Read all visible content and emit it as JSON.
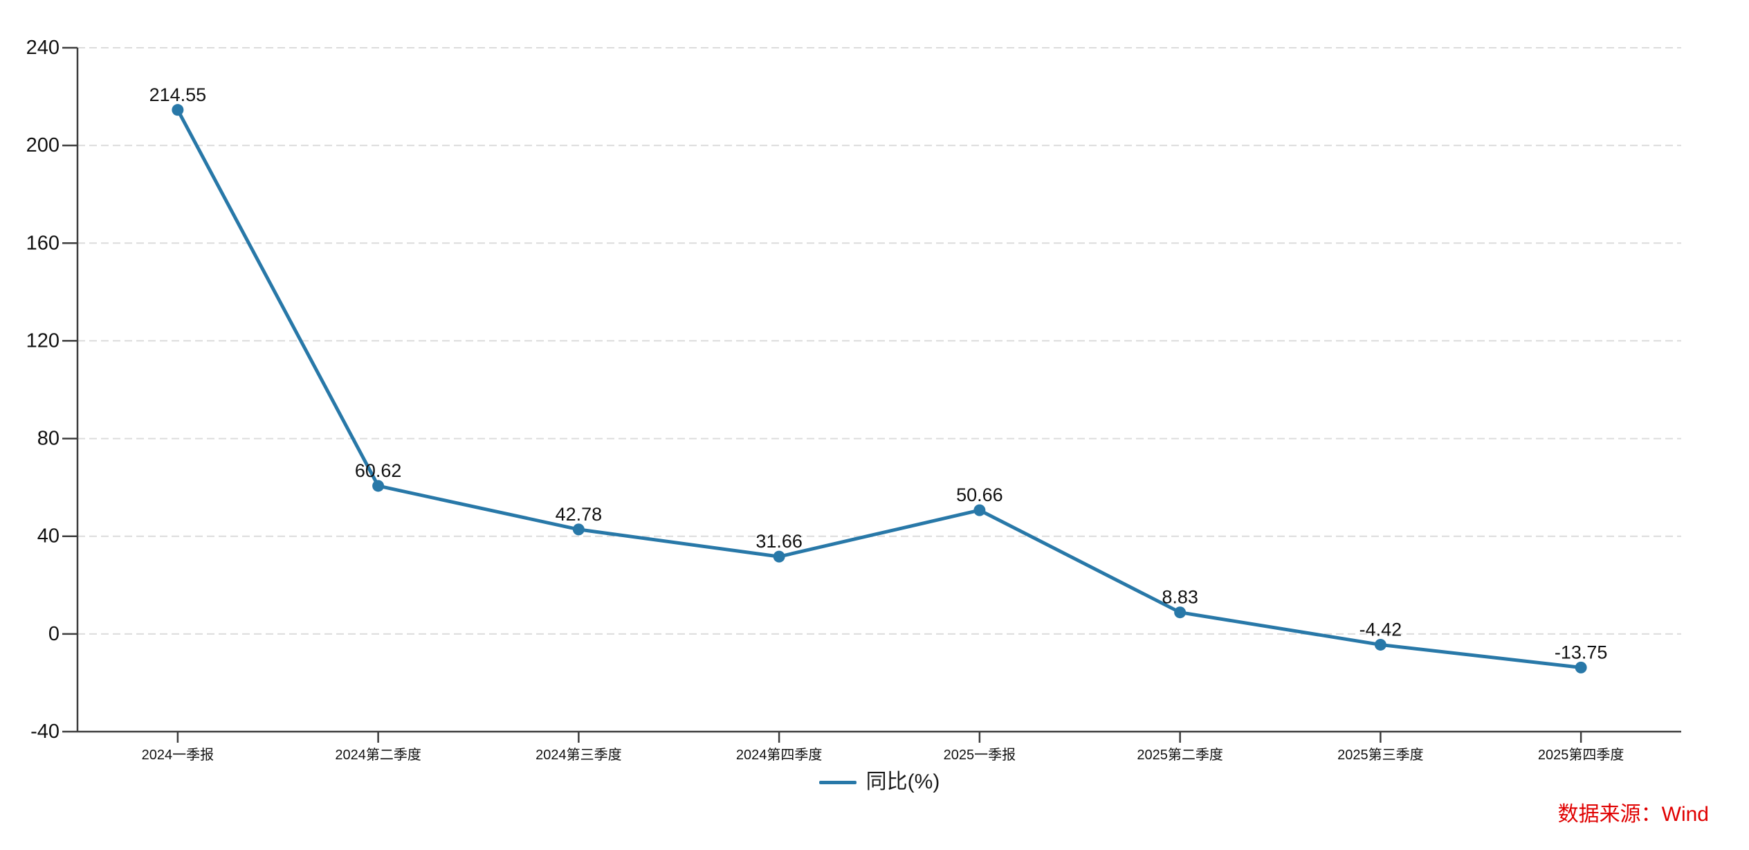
{
  "chart_data": {
    "type": "line",
    "categories": [
      "2024一季报",
      "2024第二季度",
      "2024第三季度",
      "2024第四季度",
      "2025一季报",
      "2025第二季度",
      "2025第三季度",
      "2025第四季度"
    ],
    "series": [
      {
        "name": "同比(%)",
        "values": [
          214.55,
          60.62,
          42.78,
          31.66,
          50.66,
          8.83,
          -4.42,
          -13.75
        ],
        "point_labels": [
          "214.55",
          "60.62",
          "42.78",
          "31.66",
          "50.66",
          "8.83",
          "-4.42",
          "-13.75"
        ]
      }
    ],
    "title": "",
    "xlabel": "",
    "ylabel": "",
    "ylim": [
      -40,
      240
    ],
    "yticks": [
      -40,
      0,
      40,
      80,
      120,
      160,
      200,
      240
    ],
    "ytick_labels": [
      "-40",
      "0",
      "40",
      "80",
      "120",
      "160",
      "200",
      "240"
    ],
    "grid": "horizontal-dashed",
    "legend_position": "bottom-center",
    "line_color": "#2878a8",
    "grid_color": "#dcdcdc",
    "axis_color": "#3c3c3c",
    "label_color": "#111111"
  },
  "source": {
    "text": "数据来源：Wind",
    "color": "#e00000"
  }
}
